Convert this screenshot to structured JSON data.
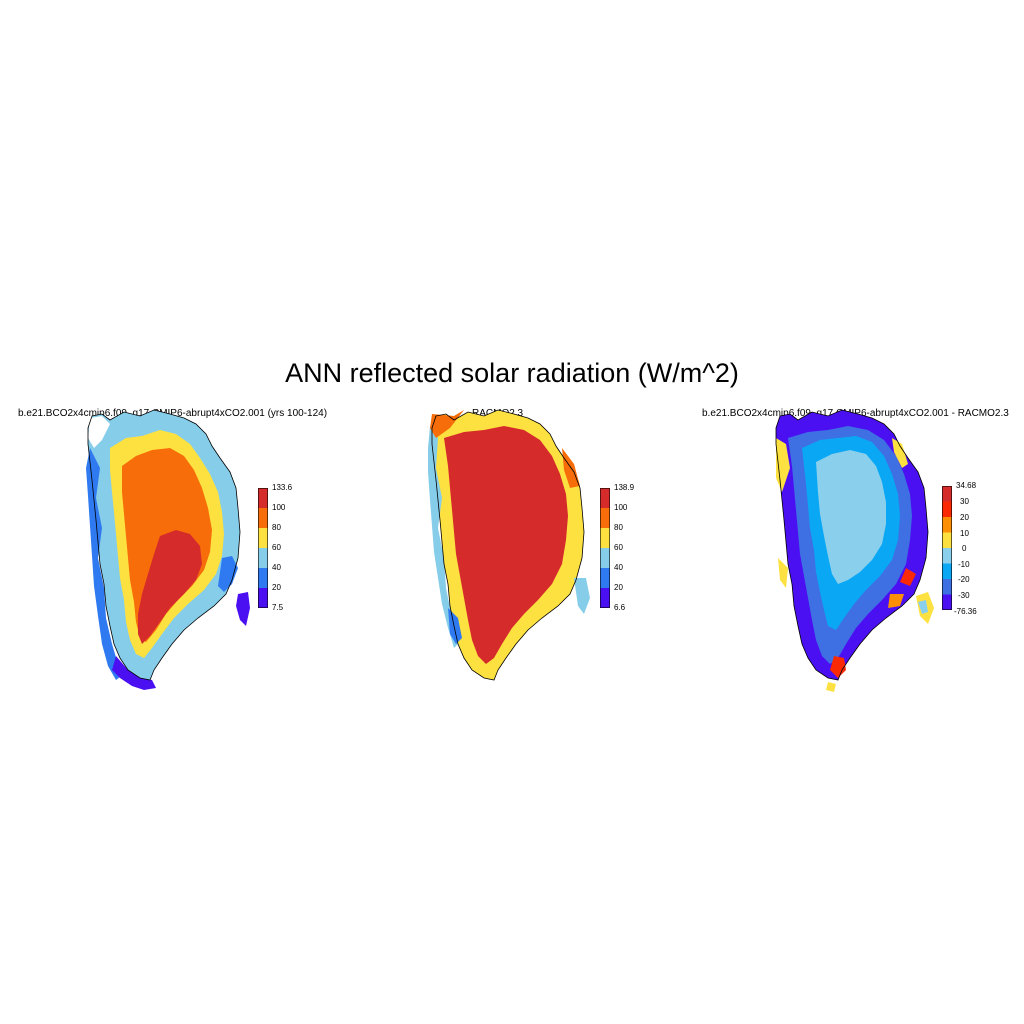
{
  "title": "ANN reflected solar radiation (W/m^2)",
  "panels": [
    {
      "title": "b.e21.BCO2x4cmip6.f09_g17.CMIP6-abrupt4xCO2.001 (yrs 100-124)",
      "colorbar": {
        "labels": [
          "133.6",
          "100",
          "80",
          "60",
          "40",
          "20",
          "7.5"
        ],
        "colors": [
          "#d62b2b",
          "#f76d0a",
          "#fde140",
          "#86cdea",
          "#2f7af0",
          "#4b10f2"
        ]
      }
    },
    {
      "title": "RACMO2.3",
      "colorbar": {
        "labels": [
          "138.9",
          "100",
          "80",
          "60",
          "40",
          "20",
          "6.6"
        ],
        "colors": [
          "#d62b2b",
          "#f76d0a",
          "#fde140",
          "#86cdea",
          "#2f7af0",
          "#4b10f2"
        ]
      }
    },
    {
      "title": "b.e21.BCO2x4cmip6.f09_g17.CMIP6-abrupt4xCO2.001 - RACMO2.3",
      "colorbar": {
        "labels": [
          "34.68",
          "30",
          "20",
          "10",
          "0",
          "-10",
          "-20",
          "-30",
          "-76.36"
        ],
        "colors": [
          "#d62b2b",
          "#fb2a05",
          "#fd8f05",
          "#fde140",
          "#8ad0ec",
          "#0aa7f5",
          "#3e70e4",
          "#4b10f2"
        ]
      }
    }
  ]
}
